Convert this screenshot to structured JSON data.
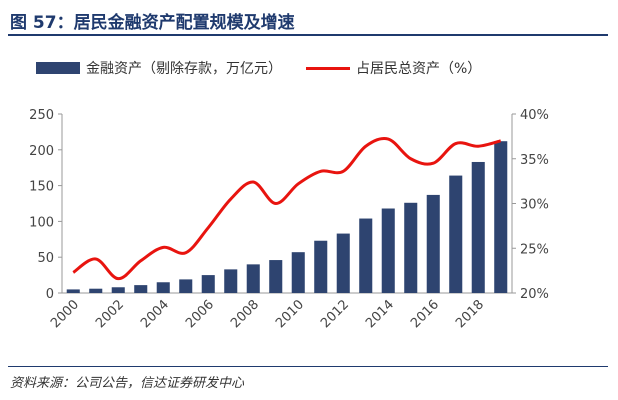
{
  "header": {
    "title": "图 57：居民金融资产配置规模及增速"
  },
  "footer": {
    "source": "资料来源：公司公告，信达证券研发中心"
  },
  "colors": {
    "bar": "#2e4470",
    "line": "#e8140f",
    "title": "#1f3a6e"
  },
  "chart_data": {
    "type": "bar",
    "title": "",
    "xlabel": "",
    "categories": [
      "2000",
      "2001",
      "2002",
      "2003",
      "2004",
      "2005",
      "2006",
      "2007",
      "2008",
      "2009",
      "2010",
      "2011",
      "2012",
      "2013",
      "2014",
      "2015",
      "2016",
      "2017",
      "2018",
      "2019"
    ],
    "x_tick_labels": [
      "2000",
      "2002",
      "2004",
      "2006",
      "2008",
      "2010",
      "2012",
      "2014",
      "2016",
      "2018"
    ],
    "y_ticks_left": [
      "0",
      "50",
      "100",
      "150",
      "200",
      "250"
    ],
    "y_ticks_right": [
      "20%",
      "25%",
      "30%",
      "35%",
      "40%"
    ],
    "ylim_left": [
      0,
      250
    ],
    "ylim_right": [
      20,
      40
    ],
    "legend_position": "top",
    "grid": false,
    "series": [
      {
        "name": "金融资产（剔除存款，万亿元）",
        "type": "bar",
        "axis": "left",
        "values": [
          5,
          6,
          8,
          11,
          15,
          19,
          25,
          33,
          40,
          46,
          57,
          73,
          83,
          104,
          118,
          126,
          137,
          164,
          183,
          212
        ]
      },
      {
        "name": "占居民总资产（%）",
        "type": "line",
        "axis": "right",
        "values": [
          22.3,
          23.8,
          21.6,
          23.6,
          25.1,
          24.5,
          27.3,
          30.5,
          32.4,
          30.0,
          32.2,
          33.6,
          33.6,
          36.4,
          37.2,
          35.0,
          34.5,
          36.7,
          36.4,
          37.0
        ]
      }
    ]
  }
}
